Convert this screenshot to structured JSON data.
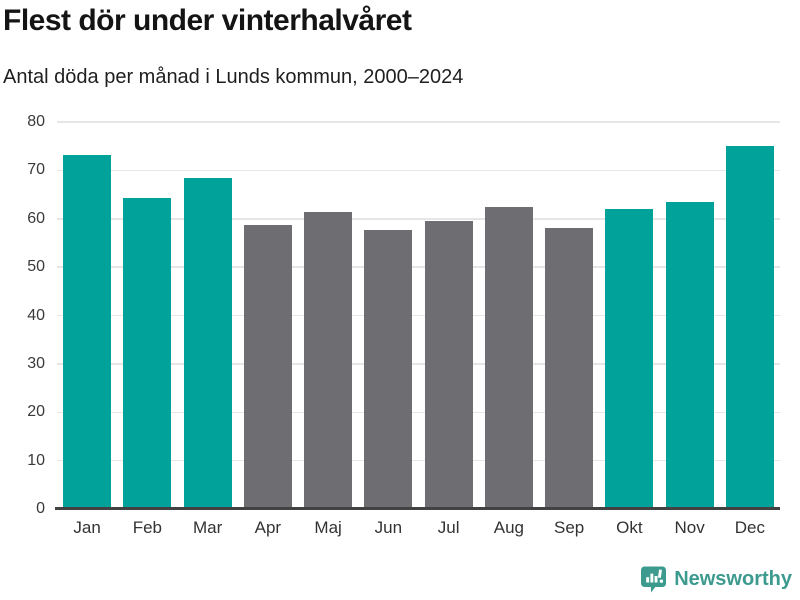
{
  "chart_data": {
    "type": "bar",
    "title": "Flest dör under vinterhalvåret",
    "subtitle": "Antal döda per månad i Lunds kommun, 2000–2024",
    "categories": [
      "Jan",
      "Feb",
      "Mar",
      "Apr",
      "Maj",
      "Jun",
      "Jul",
      "Aug",
      "Sep",
      "Okt",
      "Nov",
      "Dec"
    ],
    "values": [
      73.2,
      64.3,
      68.4,
      58.8,
      61.5,
      57.6,
      59.5,
      62.5,
      58.1,
      62.1,
      63.4,
      75.0
    ],
    "highlighted": [
      true,
      true,
      true,
      false,
      false,
      false,
      false,
      false,
      false,
      true,
      true,
      true
    ],
    "xlabel": "",
    "ylabel": "",
    "ylim": [
      0,
      80
    ],
    "yticks": [
      0,
      10,
      20,
      30,
      40,
      50,
      60,
      70,
      80
    ],
    "grid": true,
    "legend": "none",
    "colors": {
      "highlight_bar": "#00a29a",
      "default_bar": "#6d6d72",
      "gridline": "#e6e6e6",
      "axis": "#424242"
    }
  },
  "footer": {
    "brand": "Newsworthy",
    "logo_icon": "newsworthy-bar-chart-bubble-icon",
    "brand_color": "#3d9a8e"
  }
}
